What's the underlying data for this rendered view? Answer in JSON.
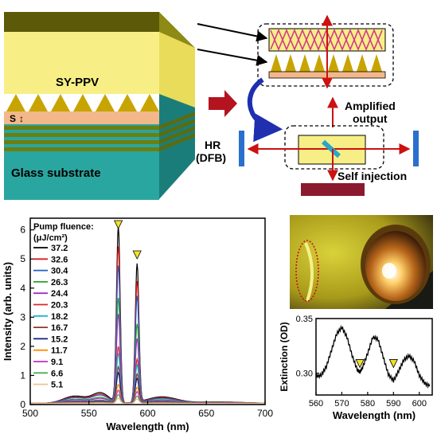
{
  "schematic": {
    "layer_label": "SY-PPV",
    "spacing_label": "S",
    "substrate_label": "Glass substrate",
    "hr_label_line1": "HR",
    "hr_label_line2": "(DFB)",
    "amplified_line1": "Amplified",
    "amplified_line2": "output",
    "self_injection": "Self injection",
    "colors": {
      "polymer": "#f7ef86",
      "grating": "#c8a400",
      "glass": "#2aa6a0",
      "stripe": "#6b7f12",
      "arrow": "#cc1111",
      "mirror": "#2a6fce",
      "dark_block": "#8b1a2e",
      "curve_arrow": "#1f2fb0"
    }
  },
  "chart_data": [
    {
      "type": "line",
      "legend_title_line1": "Pump fluence:",
      "legend_title_line2": "(μJ/cm²)",
      "xlabel": "Wavelength (nm)",
      "ylabel": "Intensity (arb. units)",
      "xlim": [
        500,
        700
      ],
      "ylim": [
        0,
        6.4
      ],
      "xticks": [
        "500",
        "550",
        "600",
        "650",
        "700"
      ],
      "yticks": [
        "0",
        "1",
        "2",
        "3",
        "4",
        "5",
        "6"
      ],
      "legend_placement": "top-left",
      "peak_markers_x": [
        575,
        591
      ],
      "series": [
        {
          "name": "37.2",
          "color": "#000000",
          "peak1": 6.05,
          "peak2": 4.75
        },
        {
          "name": "32.6",
          "color": "#e41a1c",
          "peak1": 5.35,
          "peak2": 4.15
        },
        {
          "name": "30.4",
          "color": "#1f5fc6",
          "peak1": 4.7,
          "peak2": 3.65
        },
        {
          "name": "26.3",
          "color": "#2ca02c",
          "peak1": 3.6,
          "peak2": 2.7
        },
        {
          "name": "24.4",
          "color": "#9b30c8",
          "peak1": 3.05,
          "peak2": 2.2
        },
        {
          "name": "20.3",
          "color": "#d6272f",
          "peak1": 1.95,
          "peak2": 1.5
        },
        {
          "name": "18.2",
          "color": "#17b8cf",
          "peak1": 1.7,
          "peak2": 1.3
        },
        {
          "name": "16.7",
          "color": "#8b3a2a",
          "peak1": 1.25,
          "peak2": 1.0
        },
        {
          "name": "15.2",
          "color": "#0b1f7a",
          "peak1": 1.05,
          "peak2": 0.85
        },
        {
          "name": "11.7",
          "color": "#ff8c00",
          "peak1": 0.65,
          "peak2": 0.55
        },
        {
          "name": "9.1",
          "color": "#c030c0",
          "peak1": 0.45,
          "peak2": 0.4
        },
        {
          "name": "6.6",
          "color": "#4caf50",
          "peak1": 0.3,
          "peak2": 0.25
        },
        {
          "name": "5.1",
          "color": "#f0c090",
          "peak1": 0.18,
          "peak2": 0.15
        }
      ]
    },
    {
      "type": "line",
      "xlabel": "Wavelength (nm)",
      "ylabel": "Extinction (OD)",
      "xlim": [
        560,
        605
      ],
      "ylim": [
        0.28,
        0.35
      ],
      "xticks": [
        "560",
        "570",
        "580",
        "590",
        "600"
      ],
      "yticks": [
        "0.30",
        "0.35"
      ],
      "marker_x": [
        577,
        590
      ],
      "series": [
        {
          "color": "#000000",
          "x": [
            560,
            562,
            564,
            566,
            568,
            570,
            572,
            574,
            576,
            577,
            578,
            580,
            582,
            584,
            586,
            588,
            590,
            592,
            594,
            596,
            598,
            600,
            602,
            604
          ],
          "y": [
            0.297,
            0.298,
            0.306,
            0.321,
            0.336,
            0.342,
            0.333,
            0.316,
            0.303,
            0.301,
            0.305,
            0.318,
            0.333,
            0.331,
            0.315,
            0.299,
            0.293,
            0.302,
            0.312,
            0.316,
            0.311,
            0.298,
            0.291,
            0.288
          ]
        }
      ]
    }
  ]
}
